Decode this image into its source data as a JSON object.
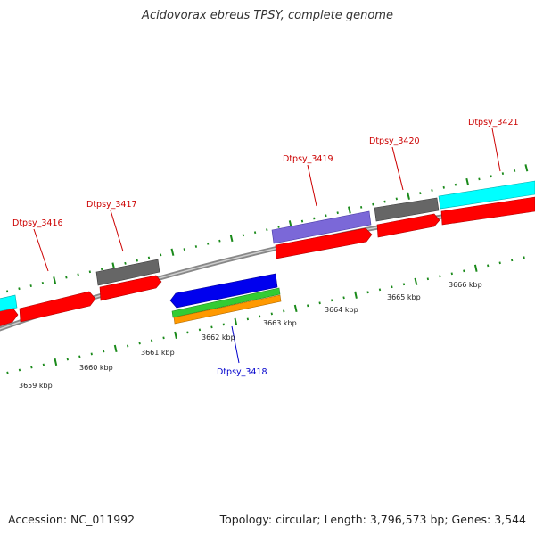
{
  "title": "Acidovorax ebreus TPSY, complete genome",
  "footer": {
    "accession": "Accession: NC_011992",
    "summary": "Topology: circular; Length: 3,796,573 bp; Genes: 3,544"
  },
  "colors": {
    "gene_red": "#ff0000",
    "gene_gray": "#666666",
    "gene_cyan": "#00ffff",
    "gene_blue": "#0000ee",
    "gene_purple": "#7b68d8",
    "gene_green": "#33cc33",
    "gene_orange": "#ff9900",
    "backbone": "#888888",
    "tick_green": "#1a8a1a",
    "label_forward": "#cc0000",
    "label_reverse": "#0000cc"
  },
  "scale": {
    "tick_labels": [
      "3659 kbp",
      "3660 kbp",
      "3661 kbp",
      "3662 kbp",
      "3663 kbp",
      "3664 kbp",
      "3665 kbp",
      "3666 kbp"
    ]
  },
  "genes": [
    {
      "label": "Dtpsy_3416",
      "strand": "forward"
    },
    {
      "label": "Dtpsy_3417",
      "strand": "forward"
    },
    {
      "label": "Dtpsy_3418",
      "strand": "reverse"
    },
    {
      "label": "Dtpsy_3419",
      "strand": "forward"
    },
    {
      "label": "Dtpsy_3420",
      "strand": "forward"
    },
    {
      "label": "Dtpsy_3421",
      "strand": "forward"
    }
  ]
}
